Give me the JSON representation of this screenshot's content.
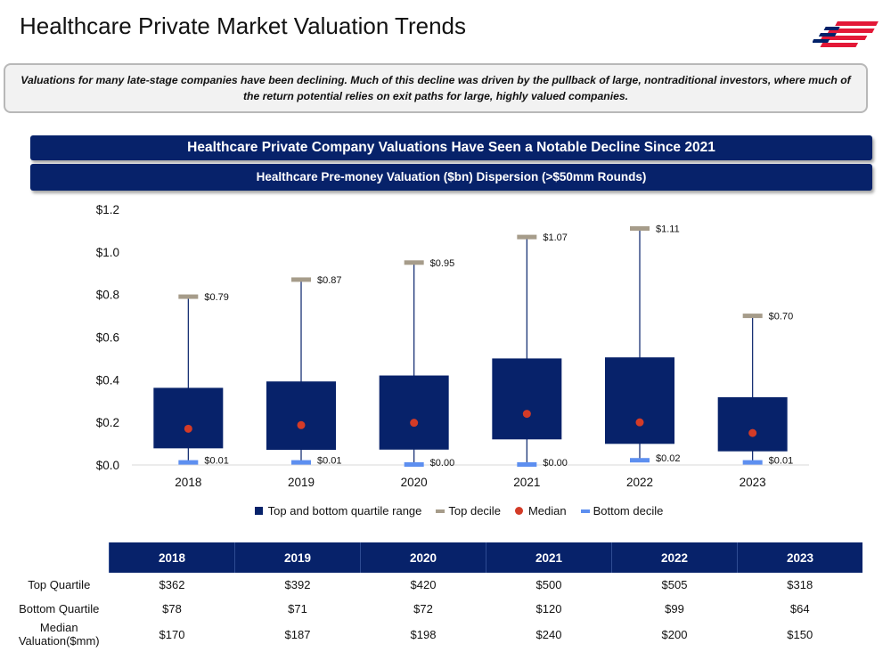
{
  "page_title": "Healthcare Private Market Valuation Trends",
  "callout_text": "Valuations for many late-stage companies have been declining. Much of this decline was driven by the pullback of large, nontraditional investors, where much of the return potential relies on exit paths for large, highly valued companies.",
  "banner_main": "Healthcare Private Company Valuations Have Seen a Notable Decline Since 2021",
  "banner_sub": "Healthcare Pre-money Valuation ($bn) Dispersion (>$50mm Rounds)",
  "colors": {
    "navy": "#07226a",
    "top_decile": "#a69c8a",
    "median": "#d33b27",
    "bottom_decile": "#5d8ff0",
    "logo_red": "#e31837"
  },
  "chart_data": {
    "type": "box",
    "title": "Healthcare Pre-money Valuation ($bn) Dispersion (>$50mm Rounds)",
    "categories": [
      "2018",
      "2019",
      "2020",
      "2021",
      "2022",
      "2023"
    ],
    "ylim": [
      0,
      1.2
    ],
    "yticks": [
      0,
      0.2,
      0.4,
      0.6,
      0.8,
      1.0,
      1.2
    ],
    "ytick_labels": [
      "$0.0",
      "$0.2",
      "$0.4",
      "$0.6",
      "$0.8",
      "$1.0",
      "$1.2"
    ],
    "series": [
      {
        "name": "Top and bottom quartile range",
        "top": [
          0.362,
          0.392,
          0.42,
          0.5,
          0.505,
          0.318
        ],
        "bottom": [
          0.078,
          0.071,
          0.072,
          0.12,
          0.099,
          0.064
        ]
      },
      {
        "name": "Top decile",
        "values": [
          0.79,
          0.87,
          0.95,
          1.07,
          1.11,
          0.7
        ],
        "labels": [
          "$0.79",
          "$0.87",
          "$0.95",
          "$1.07",
          "$1.11",
          "$0.70"
        ]
      },
      {
        "name": "Median",
        "values": [
          0.17,
          0.187,
          0.198,
          0.24,
          0.2,
          0.15
        ]
      },
      {
        "name": "Bottom decile",
        "values": [
          0.01,
          0.01,
          0.0,
          0.0,
          0.02,
          0.01
        ],
        "labels": [
          "$0.01",
          "$0.01",
          "$0.00",
          "$0.00",
          "$0.02",
          "$0.01"
        ]
      }
    ],
    "legend": [
      "Top and bottom quartile range",
      "Top decile",
      "Median",
      "Bottom decile"
    ],
    "grid": false
  },
  "table": {
    "headers": [
      "2018",
      "2019",
      "2020",
      "2021",
      "2022",
      "2023"
    ],
    "rows": [
      {
        "label": "Top Quartile",
        "values": [
          "$362",
          "$392",
          "$420",
          "$500",
          "$505",
          "$318"
        ]
      },
      {
        "label": "Bottom Quartile",
        "values": [
          "$78",
          "$71",
          "$72",
          "$120",
          "$99",
          "$64"
        ]
      },
      {
        "label": "Median Valuation($mm)",
        "values": [
          "$170",
          "$187",
          "$198",
          "$240",
          "$200",
          "$150"
        ]
      }
    ]
  }
}
